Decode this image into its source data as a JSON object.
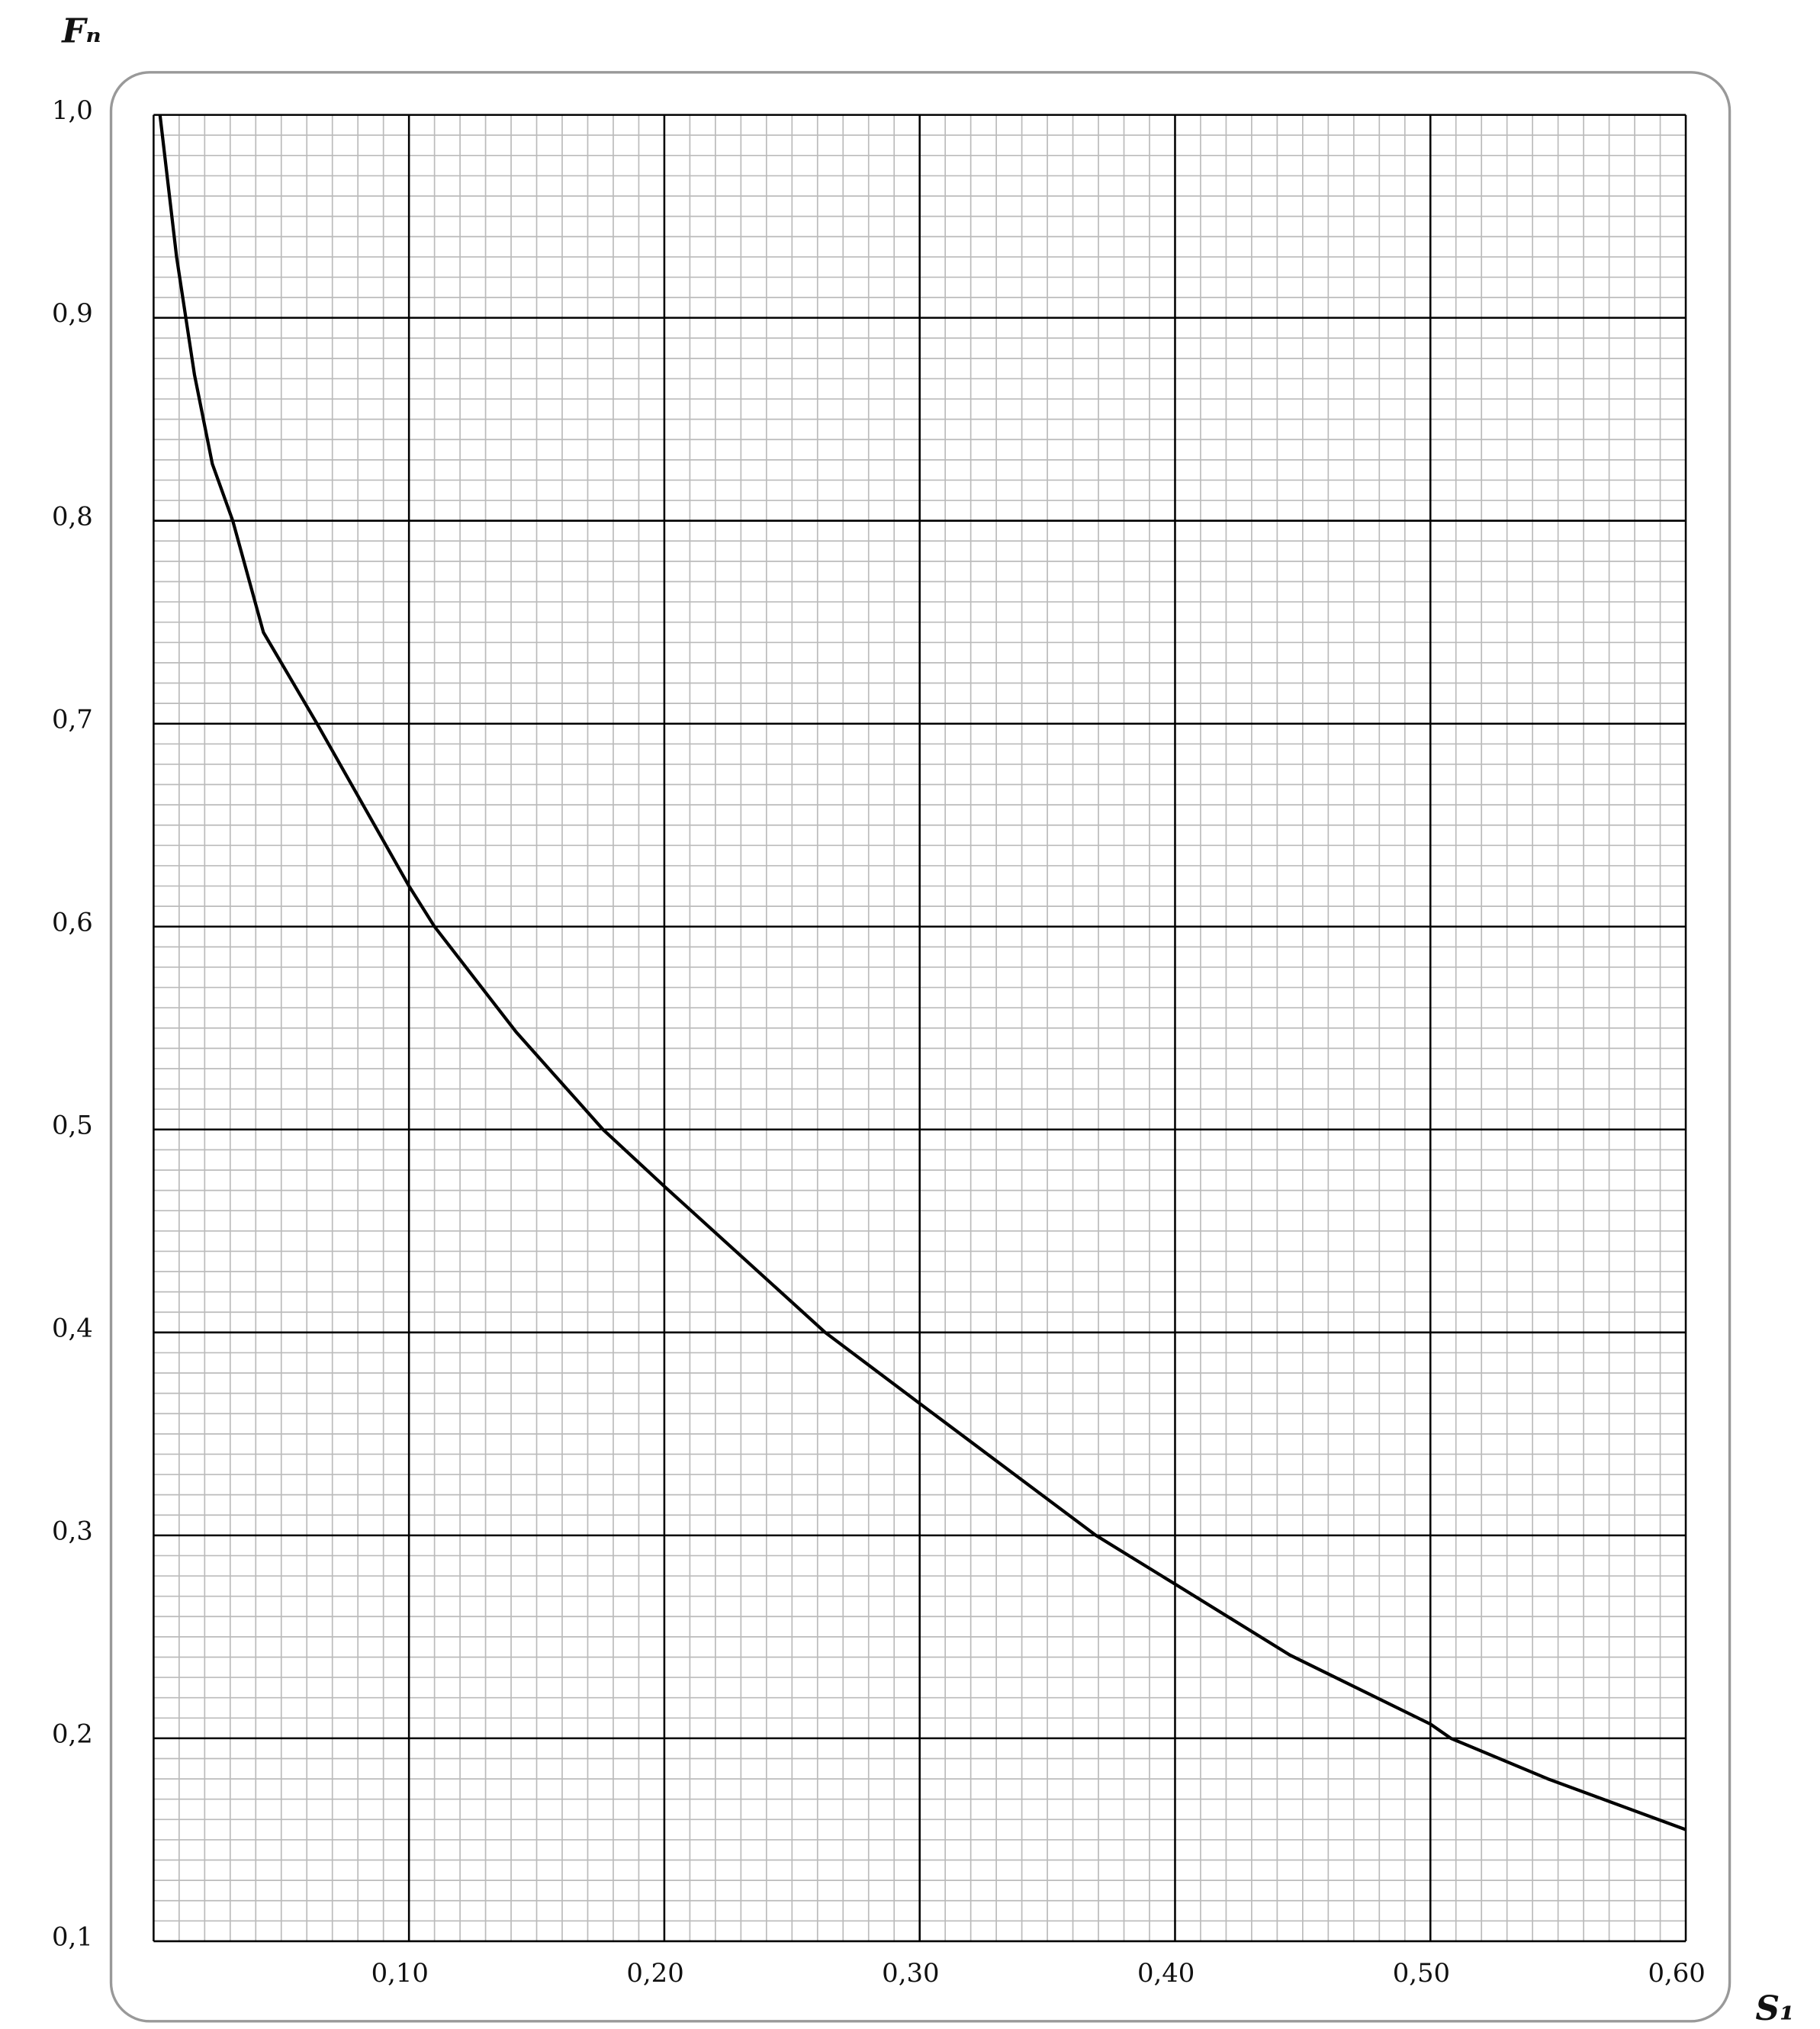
{
  "chart_data": {
    "type": "line",
    "y_label": "Fₙ",
    "x_label": "S₁",
    "x": [
      0.0025,
      0.009,
      0.016,
      0.023,
      0.031,
      0.043,
      0.064,
      0.1,
      0.11,
      0.142,
      0.176,
      0.2,
      0.263,
      0.3,
      0.369,
      0.4,
      0.445,
      0.5,
      0.508,
      0.546,
      0.6
    ],
    "series": [
      {
        "color": "#000000",
        "values": [
          1.0,
          0.93,
          0.872,
          0.828,
          0.8,
          0.745,
          0.7,
          0.62,
          0.6,
          0.548,
          0.5,
          0.472,
          0.4,
          0.365,
          0.3,
          0.276,
          0.241,
          0.207,
          0.2,
          0.18,
          0.155
        ]
      }
    ],
    "xlim": [
      0,
      0.6
    ],
    "ylim": [
      0.1,
      1.0
    ],
    "xticks": [
      {
        "value": 0.1,
        "label": "0,10"
      },
      {
        "value": 0.2,
        "label": "0,20"
      },
      {
        "value": 0.3,
        "label": "0,30"
      },
      {
        "value": 0.4,
        "label": "0,40"
      },
      {
        "value": 0.5,
        "label": "0,50"
      },
      {
        "value": 0.6,
        "label": "0,60"
      }
    ],
    "yticks": [
      {
        "value": 0.1,
        "label": "0,1"
      },
      {
        "value": 0.2,
        "label": "0,2"
      },
      {
        "value": 0.3,
        "label": "0,3"
      },
      {
        "value": 0.4,
        "label": "0,4"
      },
      {
        "value": 0.5,
        "label": "0,5"
      },
      {
        "value": 0.6,
        "label": "0,6"
      },
      {
        "value": 0.7,
        "label": "0,7"
      },
      {
        "value": 0.8,
        "label": "0,8"
      },
      {
        "value": 0.9,
        "label": "0,9"
      },
      {
        "value": 1.0,
        "label": "1,0"
      }
    ],
    "grid": true
  }
}
